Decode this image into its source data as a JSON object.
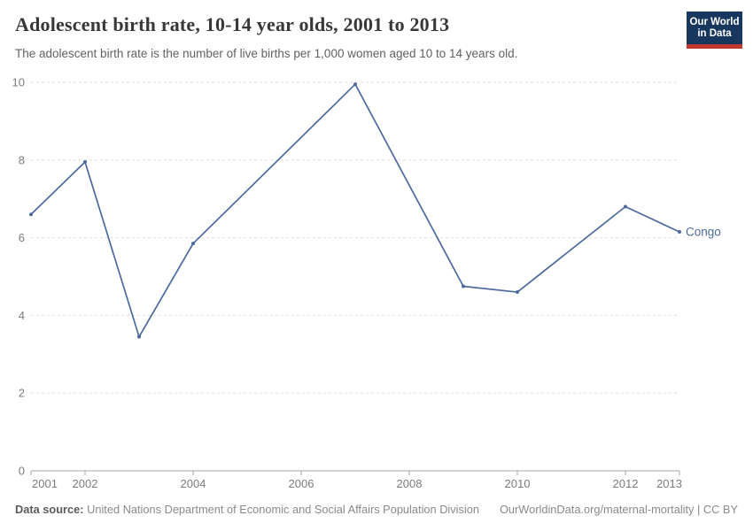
{
  "header": {
    "title": "Adolescent birth rate, 10-14 year olds, 2001 to 2013",
    "subtitle": "The adolescent birth rate is the number of live births per 1,000 women aged 10 to 14 years old.",
    "logo": {
      "line1": "Our World",
      "line2": "in Data",
      "bg_color": "#18375f",
      "stripe_color": "#c1392e"
    }
  },
  "chart_data": {
    "type": "line",
    "title": "Adolescent birth rate, 10-14 year olds, 2001 to 2013",
    "xlabel": "",
    "ylabel": "",
    "xlim": [
      2001,
      2013
    ],
    "ylim": [
      0,
      10
    ],
    "x_ticks": [
      2001,
      2002,
      2004,
      2006,
      2008,
      2010,
      2012,
      2013
    ],
    "y_ticks": [
      0,
      2,
      4,
      6,
      8,
      10
    ],
    "grid": "horizontal-dashed",
    "legend_position": "end-of-line",
    "colors": {
      "gridline": "#dedede",
      "axis": "#a5a5a5",
      "tick_text": "#7c7c7c"
    },
    "series": [
      {
        "name": "Congo",
        "color": "#4c6a9c",
        "points": [
          [
            2001,
            6.6
          ],
          [
            2002,
            7.95
          ],
          [
            2003,
            3.45
          ],
          [
            2004,
            5.85
          ],
          [
            2007,
            9.95
          ],
          [
            2009,
            4.75
          ],
          [
            2010,
            4.6
          ],
          [
            2012,
            6.8
          ],
          [
            2013,
            6.15
          ]
        ]
      }
    ]
  },
  "footer": {
    "data_source_label": "Data source:",
    "data_source_text": " United Nations Department of Economic and Social Affairs Population Division",
    "right_text": "OurWorldinData.org/maternal-mortality | CC BY"
  }
}
